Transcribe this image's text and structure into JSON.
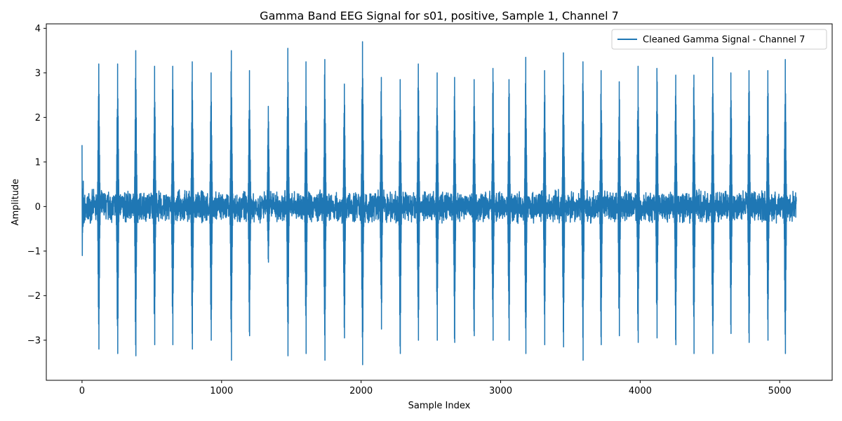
{
  "chart_data": {
    "type": "line",
    "title": "Gamma Band EEG Signal for s01, positive, Sample 1, Channel 7",
    "xlabel": "Sample Index",
    "ylabel": "Amplitude",
    "xlim": [
      -256,
      5376
    ],
    "ylim": [
      -3.9,
      4.1
    ],
    "xticks": [
      0,
      1000,
      2000,
      3000,
      4000,
      5000
    ],
    "xtick_labels": [
      "0",
      "1000",
      "2000",
      "3000",
      "4000",
      "5000"
    ],
    "yticks": [
      -3,
      -2,
      -1,
      0,
      1,
      2,
      3,
      4
    ],
    "ytick_labels": [
      "−3",
      "−2",
      "−1",
      "0",
      "1",
      "2",
      "3",
      "4"
    ],
    "grid": false,
    "legend_position": "top-right",
    "series": [
      {
        "name": "Cleaned Gamma Signal - Channel 7",
        "color": "#1f77b4",
        "n_samples": 5120,
        "baseline_amplitude": 0.4,
        "burst_center_samples": [
          120,
          255,
          385,
          520,
          650,
          790,
          925,
          1070,
          1200,
          1335,
          1475,
          1605,
          1740,
          1880,
          2010,
          2145,
          2280,
          2410,
          2545,
          2670,
          2810,
          2945,
          3060,
          3180,
          3315,
          3450,
          3590,
          3720,
          3850,
          3985,
          4120,
          4255,
          4385,
          4520,
          4650,
          4780,
          4915,
          5040
        ],
        "burst_peaks": [
          3.2,
          3.2,
          3.5,
          3.15,
          3.15,
          3.25,
          3.0,
          3.5,
          3.05,
          2.25,
          3.55,
          3.25,
          3.3,
          2.75,
          3.7,
          2.9,
          2.85,
          3.2,
          3.0,
          2.9,
          2.85,
          3.1,
          2.85,
          3.35,
          3.05,
          3.45,
          3.25,
          3.05,
          2.8,
          3.15,
          3.1,
          2.95,
          2.95,
          3.35,
          3.0,
          3.05,
          3.05,
          3.3
        ],
        "burst_troughs": [
          -3.2,
          -3.3,
          -3.35,
          -3.1,
          -3.1,
          -3.2,
          -3.0,
          -3.45,
          -2.9,
          -1.25,
          -3.35,
          -3.3,
          -3.45,
          -2.95,
          -3.55,
          -2.75,
          -3.3,
          -3.0,
          -3.0,
          -3.05,
          -2.9,
          -3.0,
          -3.0,
          -3.3,
          -3.1,
          -3.15,
          -3.45,
          -3.1,
          -2.9,
          -3.05,
          -2.95,
          -3.1,
          -3.3,
          -3.3,
          -2.85,
          -3.05,
          -3.0,
          -3.3
        ],
        "initial_spike": {
          "x": 0,
          "max": 1.38,
          "min": -1.1
        }
      }
    ]
  }
}
